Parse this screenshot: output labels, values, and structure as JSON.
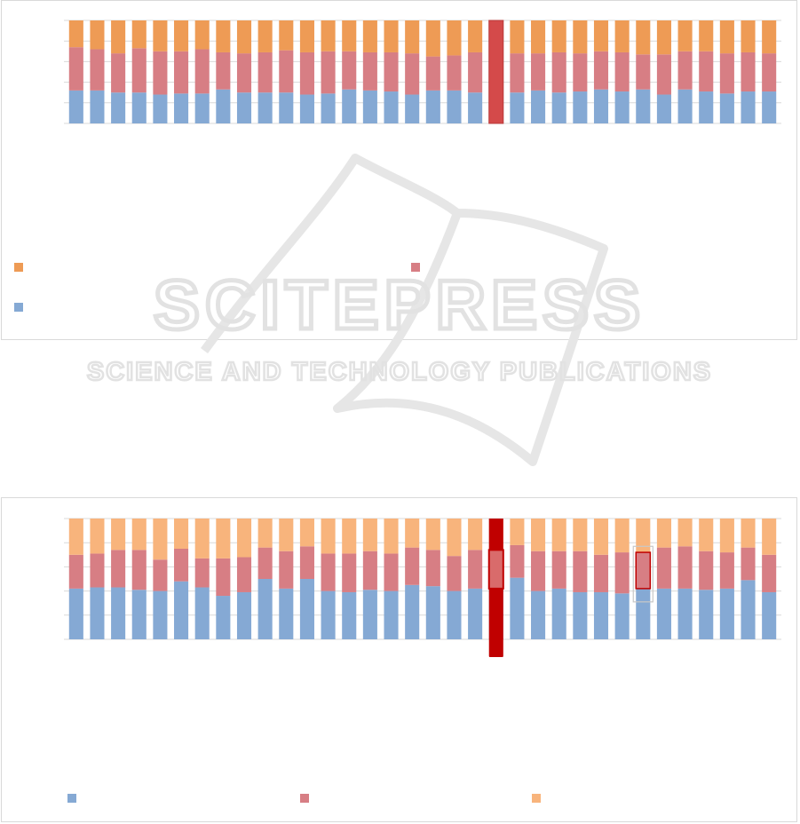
{
  "colors": {
    "series_blue": "#85a9d4",
    "series_red": "#d77e84",
    "series_orange_top": "#ee9b55",
    "series_orange_bottom": "#f8b47c",
    "highlight": "#c00000",
    "highlight_top": "#d44a4a",
    "grid": "#d9d9d9",
    "watermark": "#e2e2e2"
  },
  "watermark": {
    "line1": "SCITEPRESS",
    "line2": "SCIENCE AND TECHNOLOGY PUBLICATIONS"
  },
  "chart_data": [
    {
      "type": "bar",
      "stacked": true,
      "normalized": true,
      "grid": true,
      "legend": "bottom",
      "highlight_index": 20,
      "series": [
        {
          "color": "series_blue",
          "values": [
            0.32,
            0.32,
            0.3,
            0.3,
            0.28,
            0.29,
            0.29,
            0.33,
            0.3,
            0.3,
            0.3,
            0.28,
            0.29,
            0.33,
            0.32,
            0.31,
            0.28,
            0.32,
            0.32,
            0.3,
            0.3,
            0.3,
            0.32,
            0.3,
            0.31,
            0.33,
            0.31,
            0.33,
            0.28,
            0.33,
            0.31,
            0.29,
            0.31,
            0.31
          ]
        },
        {
          "color": "series_red",
          "values": [
            0.42,
            0.4,
            0.38,
            0.43,
            0.42,
            0.41,
            0.43,
            0.36,
            0.38,
            0.39,
            0.41,
            0.41,
            0.41,
            0.37,
            0.37,
            0.38,
            0.4,
            0.33,
            0.34,
            0.39,
            0.41,
            0.38,
            0.36,
            0.39,
            0.37,
            0.37,
            0.38,
            0.34,
            0.39,
            0.37,
            0.39,
            0.39,
            0.38,
            0.37
          ]
        },
        {
          "color": "series_orange_top",
          "values": [
            0.26,
            0.28,
            0.32,
            0.27,
            0.3,
            0.3,
            0.28,
            0.31,
            0.32,
            0.31,
            0.29,
            0.31,
            0.3,
            0.3,
            0.31,
            0.31,
            0.32,
            0.35,
            0.34,
            0.31,
            0.29,
            0.32,
            0.32,
            0.31,
            0.32,
            0.3,
            0.31,
            0.33,
            0.33,
            0.3,
            0.3,
            0.32,
            0.31,
            0.32
          ]
        }
      ]
    },
    {
      "type": "bar",
      "stacked": true,
      "normalized": true,
      "grid": true,
      "legend": "bottom",
      "highlight_index": 20,
      "selected_index": 27,
      "series": [
        {
          "color": "series_blue",
          "values": [
            0.42,
            0.43,
            0.43,
            0.41,
            0.4,
            0.48,
            0.43,
            0.36,
            0.39,
            0.5,
            0.42,
            0.5,
            0.4,
            0.39,
            0.41,
            0.4,
            0.45,
            0.44,
            0.4,
            0.42,
            0.42,
            0.51,
            0.4,
            0.42,
            0.39,
            0.39,
            0.38,
            0.42,
            0.42,
            0.42,
            0.41,
            0.42,
            0.49,
            0.39
          ]
        },
        {
          "color": "series_red",
          "values": [
            0.28,
            0.28,
            0.31,
            0.33,
            0.26,
            0.27,
            0.24,
            0.31,
            0.29,
            0.26,
            0.31,
            0.27,
            0.31,
            0.32,
            0.32,
            0.31,
            0.31,
            0.3,
            0.29,
            0.32,
            0.32,
            0.27,
            0.33,
            0.31,
            0.34,
            0.31,
            0.34,
            0.3,
            0.34,
            0.35,
            0.32,
            0.3,
            0.27,
            0.31
          ]
        },
        {
          "color": "series_orange_bottom",
          "values": [
            0.3,
            0.29,
            0.26,
            0.26,
            0.34,
            0.25,
            0.33,
            0.33,
            0.32,
            0.24,
            0.27,
            0.23,
            0.29,
            0.29,
            0.27,
            0.29,
            0.24,
            0.26,
            0.31,
            0.26,
            0.26,
            0.22,
            0.27,
            0.27,
            0.27,
            0.3,
            0.28,
            0.28,
            0.24,
            0.23,
            0.27,
            0.28,
            0.24,
            0.3
          ]
        }
      ]
    }
  ]
}
